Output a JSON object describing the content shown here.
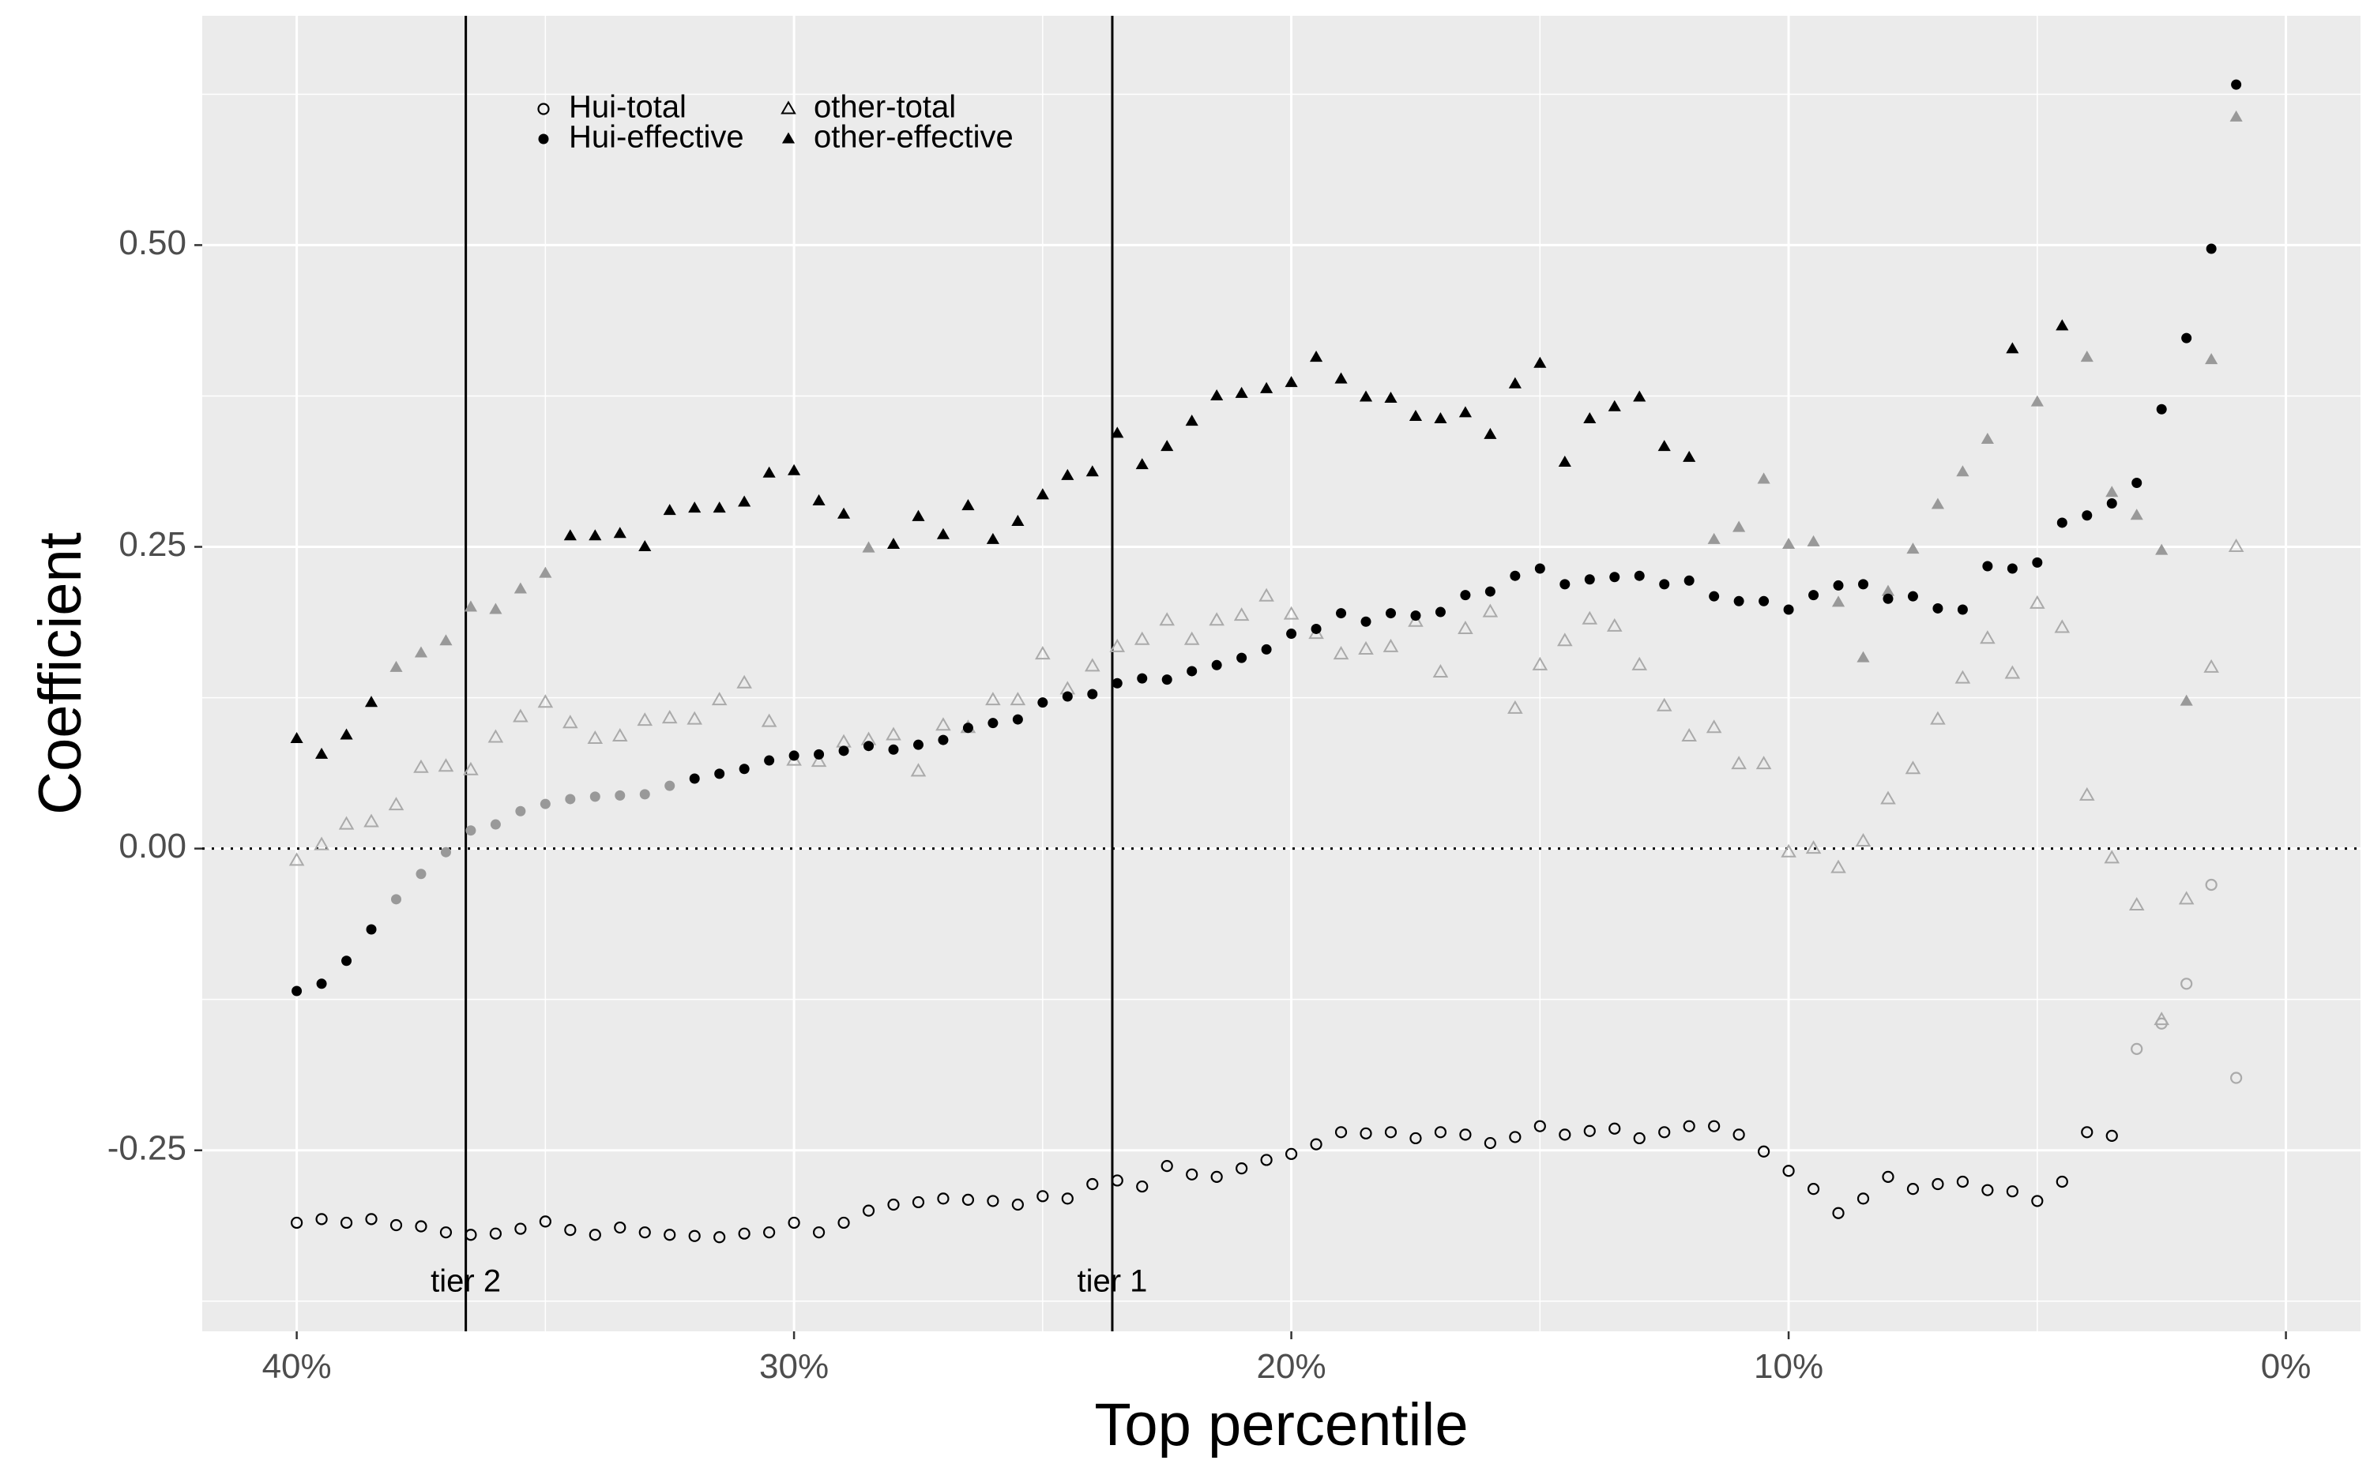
{
  "chart_data": {
    "type": "scatter",
    "xlabel": "Top percentile",
    "ylabel": "Coefficient",
    "x_reversed": true,
    "xlim": [
      41.9,
      -1.5
    ],
    "ylim": [
      -0.4,
      0.69
    ],
    "x_ticks": [
      {
        "value": 40,
        "label": "40%"
      },
      {
        "value": 30,
        "label": "30%"
      },
      {
        "value": 20,
        "label": "20%"
      },
      {
        "value": 10,
        "label": "10%"
      },
      {
        "value": 0,
        "label": "0%"
      }
    ],
    "y_ticks": [
      {
        "value": -0.25,
        "label": "-0.25"
      },
      {
        "value": 0.0,
        "label": "0.00"
      },
      {
        "value": 0.25,
        "label": "0.25"
      },
      {
        "value": 0.5,
        "label": "0.50"
      }
    ],
    "grid": true,
    "zero_line": "dotted",
    "reference_lines": [
      {
        "x": 36.6,
        "label": "tier 2"
      },
      {
        "x": 23.6,
        "label": "tier 1"
      }
    ],
    "legend": {
      "position": "top-left",
      "entries": [
        "Hui-total",
        "other-total",
        "Hui-effective",
        "other-effective"
      ]
    },
    "x": [
      40.0,
      39.5,
      39.0,
      38.5,
      38.0,
      37.5,
      37.0,
      36.5,
      36.0,
      35.5,
      35.0,
      34.5,
      34.0,
      33.5,
      33.0,
      32.5,
      32.0,
      31.5,
      31.0,
      30.5,
      30.0,
      29.5,
      29.0,
      28.5,
      28.0,
      27.5,
      27.0,
      26.5,
      26.0,
      25.5,
      25.0,
      24.5,
      24.0,
      23.5,
      23.0,
      22.5,
      22.0,
      21.5,
      21.0,
      20.5,
      20.0,
      19.5,
      19.0,
      18.5,
      18.0,
      17.5,
      17.0,
      16.5,
      16.0,
      15.5,
      15.0,
      14.5,
      14.0,
      13.5,
      13.0,
      12.5,
      12.0,
      11.5,
      11.0,
      10.5,
      10.0,
      9.5,
      9.0,
      8.5,
      8.0,
      7.5,
      7.0,
      6.5,
      6.0,
      5.5,
      5.0,
      4.5,
      4.0,
      3.5,
      3.0,
      2.5,
      2.0,
      1.5,
      1.0
    ],
    "series": [
      {
        "name": "Hui-total",
        "marker": "open-circle",
        "color": "#000000",
        "values": [
          -0.31,
          -0.307,
          -0.31,
          -0.307,
          -0.312,
          -0.313,
          -0.318,
          -0.32,
          -0.319,
          -0.315,
          -0.309,
          -0.316,
          -0.32,
          -0.314,
          -0.318,
          -0.32,
          -0.321,
          -0.322,
          -0.319,
          -0.318,
          -0.31,
          -0.318,
          -0.31,
          -0.3,
          -0.295,
          -0.293,
          -0.29,
          -0.291,
          -0.292,
          -0.295,
          -0.288,
          -0.29,
          -0.278,
          -0.275,
          -0.28,
          -0.263,
          -0.27,
          -0.272,
          -0.265,
          -0.258,
          -0.253,
          -0.245,
          -0.235,
          -0.236,
          -0.235,
          -0.24,
          -0.235,
          -0.237,
          -0.244,
          -0.239,
          -0.23,
          -0.237,
          -0.234,
          -0.232,
          -0.24,
          -0.235,
          -0.23,
          -0.23,
          -0.237,
          -0.251,
          -0.267,
          -0.282,
          -0.302,
          -0.29,
          -0.272,
          -0.282,
          -0.278,
          -0.276,
          -0.283,
          -0.284,
          -0.292,
          -0.276,
          -0.235,
          -0.238,
          -0.166,
          -0.145,
          -0.112,
          -0.03,
          -0.19
        ],
        "overlay_color": "#aaaaaa",
        "overlay_count": 5
      },
      {
        "name": "other-total",
        "marker": "open-triangle",
        "color": "#aaaaaa",
        "values": [
          -0.01,
          0.003,
          0.02,
          0.022,
          0.036,
          0.067,
          0.068,
          0.065,
          0.092,
          0.109,
          0.121,
          0.104,
          0.091,
          0.093,
          0.106,
          0.108,
          0.107,
          0.123,
          0.137,
          0.105,
          0.073,
          0.072,
          0.088,
          0.09,
          0.094,
          0.064,
          0.102,
          0.1,
          0.123,
          0.123,
          0.161,
          0.132,
          0.151,
          0.167,
          0.173,
          0.189,
          0.173,
          0.189,
          0.193,
          0.209,
          0.194,
          0.178,
          0.161,
          0.165,
          0.167,
          0.188,
          0.146,
          0.182,
          0.196,
          0.116,
          0.152,
          0.172,
          0.19,
          0.184,
          0.152,
          0.118,
          0.093,
          0.1,
          0.07,
          0.07,
          -0.003,
          0.0,
          -0.016,
          0.006,
          0.041,
          0.066,
          0.107,
          0.141,
          0.174,
          0.145,
          0.203,
          0.183,
          0.044,
          -0.008,
          -0.047,
          -0.142,
          -0.042,
          0.15,
          0.25
        ]
      },
      {
        "name": "other-effective",
        "marker": "filled-triangle",
        "color": "#000000",
        "values": [
          0.091,
          0.078,
          0.094,
          0.121,
          0.15,
          0.162,
          0.172,
          0.2,
          0.198,
          0.215,
          0.228,
          0.259,
          0.259,
          0.261,
          0.25,
          0.28,
          0.282,
          0.282,
          0.287,
          0.311,
          0.313,
          0.288,
          0.277,
          0.249,
          0.252,
          0.275,
          0.26,
          0.284,
          0.256,
          0.271,
          0.293,
          0.309,
          0.312,
          0.344,
          0.318,
          0.333,
          0.354,
          0.375,
          0.377,
          0.381,
          0.386,
          0.407,
          0.389,
          0.374,
          0.373,
          0.358,
          0.356,
          0.361,
          0.343,
          0.385,
          0.402,
          0.32,
          0.356,
          0.366,
          0.374,
          0.333,
          0.324,
          0.256,
          0.266,
          0.306,
          0.252,
          0.254,
          0.204,
          0.158,
          0.213,
          0.248,
          0.285,
          0.312,
          0.339,
          0.414,
          0.37,
          0.433,
          0.407,
          0.295,
          0.276,
          0.247,
          0.122,
          0.405,
          0.606
        ],
        "gray_indices": [
          4,
          5,
          6,
          7,
          8,
          9,
          10,
          23,
          57,
          58,
          59,
          60,
          61,
          62,
          63,
          64,
          65,
          66,
          67,
          68,
          70,
          72,
          73,
          74,
          75,
          76,
          77,
          78
        ]
      },
      {
        "name": "Hui-effective",
        "marker": "filled-circle",
        "color": "#000000",
        "values": [
          -0.118,
          -0.112,
          -0.093,
          -0.067,
          -0.042,
          -0.021,
          -0.003,
          0.015,
          0.02,
          0.031,
          0.037,
          0.041,
          0.043,
          0.044,
          0.045,
          0.052,
          0.058,
          0.062,
          0.066,
          0.073,
          0.077,
          0.078,
          0.081,
          0.085,
          0.082,
          0.086,
          0.09,
          0.1,
          0.104,
          0.107,
          0.121,
          0.126,
          0.128,
          0.137,
          0.141,
          0.14,
          0.147,
          0.152,
          0.158,
          0.165,
          0.178,
          0.182,
          0.195,
          0.188,
          0.195,
          0.193,
          0.196,
          0.21,
          0.213,
          0.226,
          0.232,
          0.219,
          0.223,
          0.225,
          0.226,
          0.219,
          0.222,
          0.209,
          0.205,
          0.205,
          0.198,
          0.21,
          0.218,
          0.219,
          0.207,
          0.209,
          0.199,
          0.198,
          0.234,
          0.232,
          0.237,
          0.27,
          0.276,
          0.286,
          0.303,
          0.364,
          0.423,
          0.497,
          0.633
        ],
        "gray_indices": [
          4,
          5,
          6,
          7,
          8,
          9,
          10,
          11,
          12,
          13,
          14,
          15
        ]
      }
    ]
  }
}
